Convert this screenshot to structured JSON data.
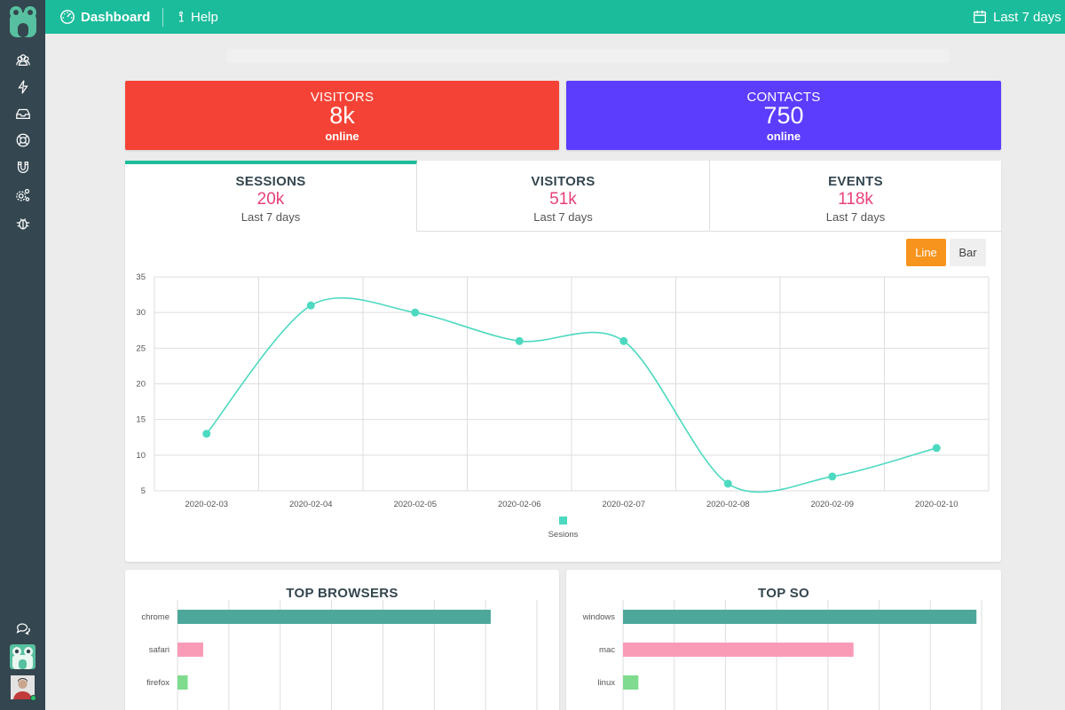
{
  "topbar": {
    "dashboard_label": "Dashboard",
    "help_label": "Help",
    "range_label": "Last 7 days"
  },
  "sidebar": {
    "icons": [
      "users-icon",
      "bolt-icon",
      "inbox-icon",
      "lifebuoy-icon",
      "magnet-icon",
      "settings-icon",
      "bug-icon"
    ],
    "chat_icon": "chat-icon"
  },
  "stats": [
    {
      "label": "VISITORS",
      "value": "8k",
      "sub": "online",
      "color": "#f44336"
    },
    {
      "label": "CONTACTS",
      "value": "750",
      "sub": "online",
      "color": "#5c3cfd"
    }
  ],
  "tabs": [
    {
      "title": "SESSIONS",
      "value": "20k",
      "sub": "Last 7 days",
      "active": true
    },
    {
      "title": "VISITORS",
      "value": "51k",
      "sub": "Last 7 days",
      "active": false
    },
    {
      "title": "EVENTS",
      "value": "118k",
      "sub": "Last 7 days",
      "active": false
    }
  ],
  "chart_toggle": {
    "line_label": "Line",
    "bar_label": "Bar",
    "selected": "Line"
  },
  "colors": {
    "accent": "#1bbc9b",
    "sidebar": "#34464f",
    "series": "#4dd9c0",
    "value_pink": "#e8407a",
    "line_button": "#f7941d"
  },
  "chart_data": [
    {
      "type": "line",
      "x": [
        "2020-02-03",
        "2020-02-04",
        "2020-02-05",
        "2020-02-06",
        "2020-02-07",
        "2020-02-08",
        "2020-02-09",
        "2020-02-10"
      ],
      "series": [
        {
          "name": "Sesions",
          "values": [
            13,
            31,
            30,
            26,
            26,
            6,
            7,
            11
          ]
        }
      ],
      "yticks": [
        5,
        10,
        15,
        20,
        25,
        30,
        35
      ],
      "ylim": [
        5,
        35
      ],
      "grid": true,
      "legend": "bottom"
    },
    {
      "type": "bar",
      "title": "TOP BROWSERS",
      "orientation": "horizontal",
      "categories": [
        "chrome",
        "safari",
        "firefox"
      ],
      "values": [
        61,
        5,
        2
      ],
      "xlim": [
        0,
        70
      ],
      "colors": [
        "#4ea79b",
        "#f99bb7",
        "#7fdc8f"
      ]
    },
    {
      "type": "bar",
      "title": "TOP SO",
      "orientation": "horizontal",
      "categories": [
        "windows",
        "mac",
        "linux"
      ],
      "values": [
        69,
        45,
        3
      ],
      "xlim": [
        0,
        70
      ],
      "colors": [
        "#4ea79b",
        "#f99bb7",
        "#7fdc8f"
      ]
    }
  ]
}
